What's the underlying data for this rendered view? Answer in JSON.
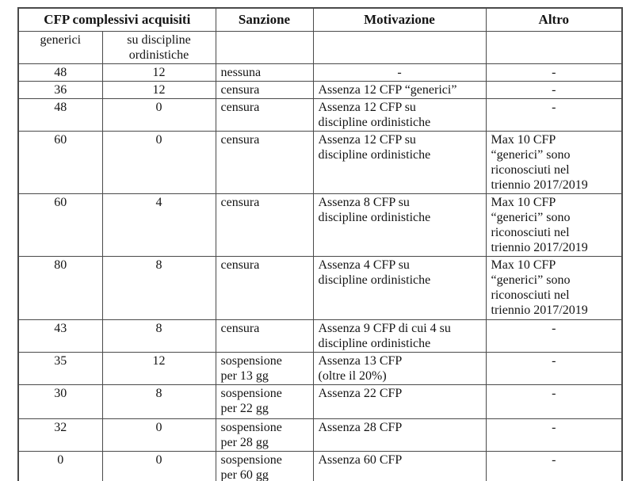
{
  "table": {
    "header": {
      "cfp_group": "CFP complessivi acquisiti",
      "sanzione": "Sanzione",
      "motivazione": "Motivazione",
      "altro": "Altro",
      "sub_generici": "generici",
      "sub_ordinistiche": "su discipline ordinistiche"
    },
    "rows": [
      {
        "generici": "48",
        "ordinistiche": "12",
        "sanzione": "nessuna",
        "motivazione": "-",
        "altro": "-"
      },
      {
        "generici": "36",
        "ordinistiche": "12",
        "sanzione": "censura",
        "motivazione": "Assenza 12 CFP “generici”",
        "altro": "-"
      },
      {
        "generici": "48",
        "ordinistiche": "0",
        "sanzione": "censura",
        "motivazione": "Assenza 12 CFP su\ndiscipline ordinistiche",
        "altro": "-"
      },
      {
        "generici": "60",
        "ordinistiche": "0",
        "sanzione": "censura",
        "motivazione": "Assenza 12 CFP su\ndiscipline ordinistiche",
        "altro": "Max 10 CFP\n“generici” sono\nriconosciuti nel\ntriennio 2017/2019"
      },
      {
        "generici": "60",
        "ordinistiche": "4",
        "sanzione": "censura",
        "motivazione": "Assenza 8 CFP su\ndiscipline ordinistiche",
        "altro": "Max 10 CFP\n“generici” sono\nriconosciuti nel\ntriennio 2017/2019"
      },
      {
        "generici": "80",
        "ordinistiche": "8",
        "sanzione": "censura",
        "motivazione": "Assenza 4 CFP su\ndiscipline ordinistiche",
        "altro": "Max 10 CFP\n“generici” sono\nriconosciuti nel\ntriennio 2017/2019"
      },
      {
        "generici": "43",
        "ordinistiche": "8",
        "sanzione": "censura",
        "motivazione": "Assenza 9 CFP di cui 4 su\ndiscipline ordinistiche",
        "altro": "-"
      },
      {
        "generici": "35",
        "ordinistiche": "12",
        "sanzione": "sospensione\nper 13 gg",
        "motivazione": "Assenza 13 CFP\n(oltre il 20%)",
        "altro": "-"
      },
      {
        "generici": "30",
        "ordinistiche": "8",
        "sanzione": "sospensione\nper 22 gg",
        "motivazione": "Assenza 22 CFP",
        "altro": "-"
      },
      {
        "generici": "32",
        "ordinistiche": "0",
        "sanzione": "sospensione\nper 28 gg",
        "motivazione": "Assenza 28 CFP",
        "altro": "-"
      },
      {
        "generici": "0",
        "ordinistiche": "0",
        "sanzione": "sospensione\nper 60 gg",
        "motivazione": "Assenza 60 CFP",
        "altro": "-"
      }
    ]
  },
  "colors": {
    "border": "#4a4a4a",
    "text": "#141414",
    "background": "#ffffff"
  }
}
